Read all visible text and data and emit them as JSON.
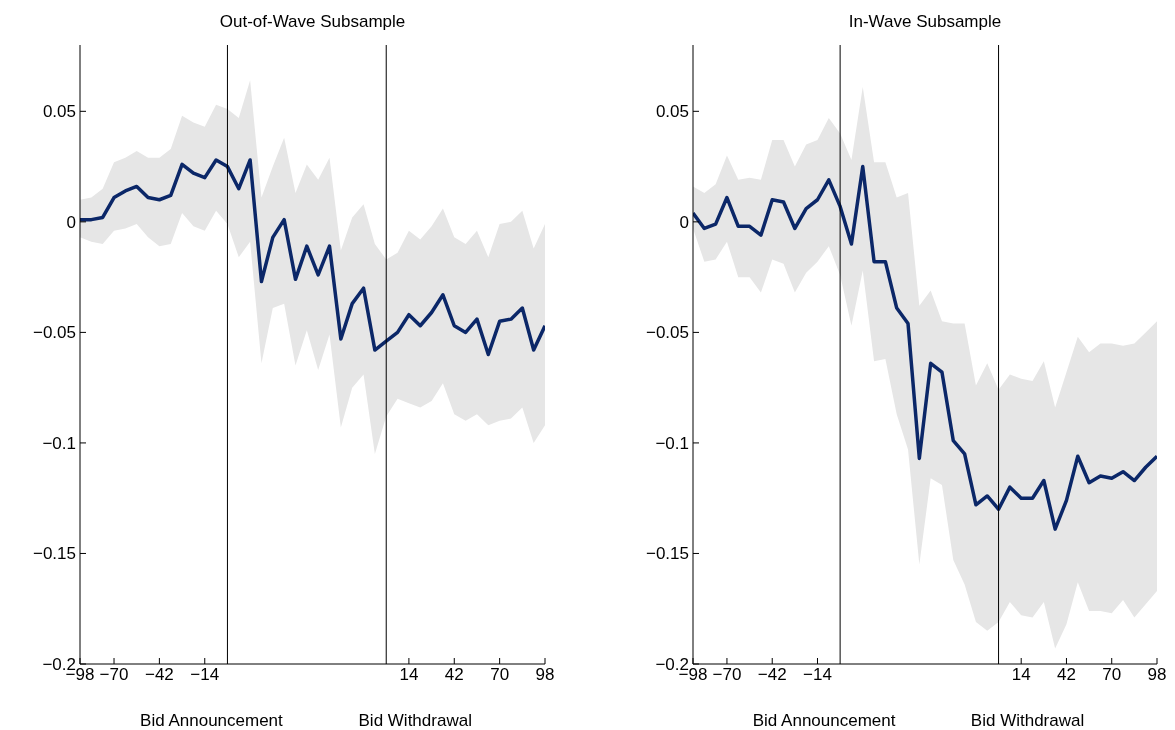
{
  "chart_data": [
    {
      "type": "line",
      "title": "Out-of-Wave Subsample",
      "marker": "none",
      "categories": [
        "−98",
        null,
        null,
        "−70",
        null,
        null,
        null,
        "−42",
        null,
        null,
        null,
        "−14",
        null,
        null,
        null,
        null,
        null,
        null,
        null,
        null,
        null,
        null,
        null,
        null,
        null,
        null,
        null,
        null,
        null,
        "14",
        null,
        null,
        null,
        "42",
        null,
        null,
        null,
        "70",
        null,
        null,
        null,
        "98"
      ],
      "ylim": [
        -0.2,
        0.08
      ],
      "yticks": [
        -0.2,
        -0.15,
        -0.1,
        -0.05,
        0,
        0.05
      ],
      "annotations": [
        "Bid Announcement",
        "Bid Withdrawal"
      ],
      "series": [
        {
          "color": "#0b2768",
          "values": [
            0.001,
            0.001,
            0.002,
            0.011,
            0.014,
            0.016,
            0.011,
            0.01,
            0.012,
            0.026,
            0.022,
            0.02,
            0.028,
            0.025,
            0.015,
            0.028,
            -0.027,
            -0.007,
            0.001,
            -0.026,
            -0.011,
            -0.024,
            -0.011,
            -0.053,
            -0.037,
            -0.03,
            -0.058,
            -0.054,
            -0.05,
            -0.042,
            -0.047,
            -0.041,
            -0.033,
            -0.047,
            -0.05,
            -0.044,
            -0.06,
            -0.045,
            -0.044,
            -0.039,
            -0.058,
            -0.047
          ],
          "lower": [
            -0.007,
            -0.009,
            -0.01,
            -0.004,
            -0.003,
            -0.001,
            -0.007,
            -0.011,
            -0.01,
            0.004,
            -0.002,
            -0.004,
            0.005,
            -0.001,
            -0.016,
            -0.009,
            -0.064,
            -0.039,
            -0.037,
            -0.065,
            -0.049,
            -0.067,
            -0.051,
            -0.093,
            -0.075,
            -0.069,
            -0.105,
            -0.088,
            -0.08,
            -0.082,
            -0.084,
            -0.081,
            -0.073,
            -0.087,
            -0.09,
            -0.087,
            -0.092,
            -0.09,
            -0.089,
            -0.084,
            -0.1,
            -0.092
          ],
          "upper": [
            0.01,
            0.011,
            0.015,
            0.027,
            0.029,
            0.032,
            0.029,
            0.029,
            0.033,
            0.048,
            0.045,
            0.043,
            0.053,
            0.051,
            0.047,
            0.064,
            0.011,
            0.025,
            0.038,
            0.013,
            0.026,
            0.019,
            0.029,
            -0.013,
            0.002,
            0.008,
            -0.01,
            -0.017,
            -0.014,
            -0.004,
            -0.008,
            -0.002,
            0.006,
            -0.007,
            -0.01,
            -0.004,
            -0.016,
            -0.001,
            0.0,
            0.005,
            -0.012,
            -0.001
          ]
        }
      ]
    },
    {
      "type": "line",
      "title": "In-Wave Subsample",
      "marker": "none",
      "categories": [
        "−98",
        null,
        null,
        "−70",
        null,
        null,
        null,
        "−42",
        null,
        null,
        null,
        "−14",
        null,
        null,
        null,
        null,
        null,
        null,
        null,
        null,
        null,
        null,
        null,
        null,
        null,
        null,
        null,
        null,
        null,
        "14",
        null,
        null,
        null,
        "42",
        null,
        null,
        null,
        "70",
        null,
        null,
        null,
        "98"
      ],
      "ylim": [
        -0.2,
        0.08
      ],
      "yticks": [
        -0.2,
        -0.15,
        -0.1,
        -0.05,
        0,
        0.05
      ],
      "annotations": [
        "Bid Announcement",
        "Bid Withdrawal"
      ],
      "series": [
        {
          "color": "#0b2768",
          "values": [
            0.004,
            -0.003,
            -0.001,
            0.011,
            -0.002,
            -0.002,
            -0.006,
            0.01,
            0.009,
            -0.003,
            0.006,
            0.01,
            0.019,
            0.007,
            -0.01,
            0.025,
            -0.018,
            -0.018,
            -0.039,
            -0.046,
            -0.107,
            -0.064,
            -0.068,
            -0.099,
            -0.105,
            -0.128,
            -0.124,
            -0.13,
            -0.12,
            -0.125,
            -0.125,
            -0.117,
            -0.139,
            -0.126,
            -0.106,
            -0.118,
            -0.115,
            -0.116,
            -0.113,
            -0.117,
            -0.111,
            -0.106
          ],
          "lower": [
            -0.003,
            -0.018,
            -0.017,
            -0.009,
            -0.025,
            -0.025,
            -0.032,
            -0.017,
            -0.019,
            -0.032,
            -0.023,
            -0.018,
            -0.011,
            -0.024,
            -0.047,
            -0.022,
            -0.063,
            -0.062,
            -0.087,
            -0.103,
            -0.155,
            -0.116,
            -0.119,
            -0.153,
            -0.164,
            -0.181,
            -0.185,
            -0.181,
            -0.172,
            -0.178,
            -0.179,
            -0.172,
            -0.193,
            -0.182,
            -0.163,
            -0.176,
            -0.176,
            -0.177,
            -0.171,
            -0.179,
            -0.173,
            -0.167
          ],
          "upper": [
            0.016,
            0.013,
            0.017,
            0.03,
            0.019,
            0.02,
            0.019,
            0.037,
            0.037,
            0.025,
            0.035,
            0.037,
            0.047,
            0.04,
            0.028,
            0.061,
            0.027,
            0.027,
            0.011,
            0.013,
            -0.038,
            -0.031,
            -0.045,
            -0.046,
            -0.046,
            -0.074,
            -0.064,
            -0.076,
            -0.069,
            -0.071,
            -0.072,
            -0.063,
            -0.084,
            -0.068,
            -0.052,
            -0.059,
            -0.055,
            -0.055,
            -0.056,
            -0.055,
            -0.05,
            -0.045
          ]
        }
      ]
    }
  ]
}
